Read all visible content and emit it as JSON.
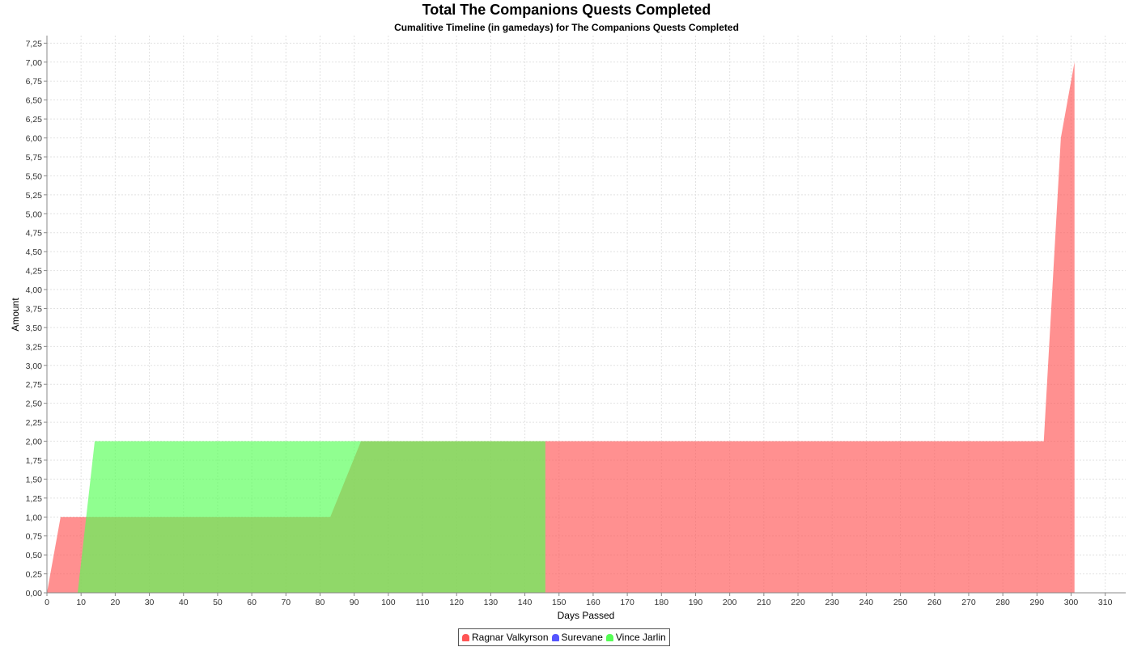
{
  "chart_data": {
    "type": "area",
    "title": "Total The Companions Quests Completed",
    "subtitle": "Cumalitive Timeline (in gamedays) for The Companions Quests Completed",
    "xlabel": "Days Passed",
    "ylabel": "Amount",
    "xlim": [
      0,
      316
    ],
    "ylim": [
      0,
      7.35
    ],
    "x_ticks": [
      "0",
      "10",
      "20",
      "30",
      "40",
      "50",
      "60",
      "70",
      "80",
      "90",
      "100",
      "110",
      "120",
      "130",
      "140",
      "150",
      "160",
      "170",
      "180",
      "190",
      "200",
      "210",
      "220",
      "230",
      "240",
      "250",
      "260",
      "270",
      "280",
      "290",
      "300",
      "310"
    ],
    "y_ticks": [
      "0,00",
      "0,25",
      "0,50",
      "0,75",
      "1,00",
      "1,25",
      "1,50",
      "1,75",
      "2,00",
      "2,25",
      "2,50",
      "2,75",
      "3,00",
      "3,25",
      "3,50",
      "3,75",
      "4,00",
      "4,25",
      "4,50",
      "4,75",
      "5,00",
      "5,25",
      "5,50",
      "5,75",
      "6,00",
      "6,25",
      "6,50",
      "6,75",
      "7,00",
      "7,25"
    ],
    "grid": true,
    "legend_position": "bottom",
    "series": [
      {
        "name": "Ragnar Valkyrson",
        "color": "#ff5555",
        "points": [
          [
            0,
            0
          ],
          [
            4,
            1
          ],
          [
            83,
            1
          ],
          [
            92,
            2
          ],
          [
            292,
            2
          ],
          [
            297,
            6
          ],
          [
            301,
            7
          ],
          [
            301,
            0
          ]
        ]
      },
      {
        "name": "Surevane",
        "color": "#5555ff",
        "points": []
      },
      {
        "name": "Vince Jarlin",
        "color": "#55ff55",
        "points": [
          [
            9,
            0
          ],
          [
            14,
            2
          ],
          [
            146,
            2
          ],
          [
            146,
            0
          ]
        ]
      }
    ]
  }
}
